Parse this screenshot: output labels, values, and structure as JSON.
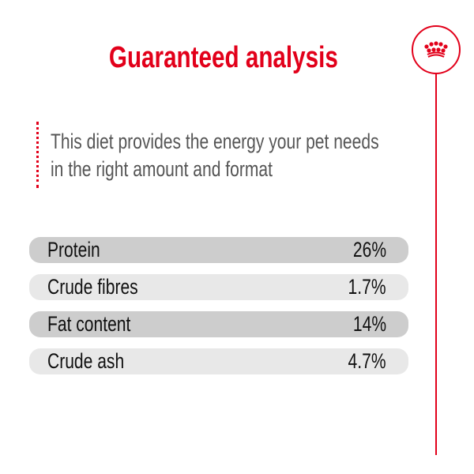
{
  "title": "Guaranteed analysis",
  "description": [
    "This diet provides the energy your pet needs",
    "in the right amount and format"
  ],
  "logo": {
    "icon": "crown-icon",
    "color": "#e2001a"
  },
  "rows": [
    {
      "label": "Protein",
      "value": "26%"
    },
    {
      "label": "Crude fibres",
      "value": "1.7%"
    },
    {
      "label": "Fat content",
      "value": "14%"
    },
    {
      "label": "Crude ash",
      "value": "4.7%"
    }
  ],
  "colors": {
    "accent": "#e2001a",
    "row_dark": "#cdcdcd",
    "row_light": "#e8e8e8"
  }
}
